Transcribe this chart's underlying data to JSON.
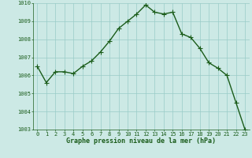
{
  "hours": [
    0,
    1,
    2,
    3,
    4,
    5,
    6,
    7,
    8,
    9,
    10,
    11,
    12,
    13,
    14,
    15,
    16,
    17,
    18,
    19,
    20,
    21,
    22,
    23
  ],
  "pressure": [
    1006.5,
    1005.6,
    1006.2,
    1006.2,
    1006.1,
    1006.5,
    1006.8,
    1007.3,
    1007.9,
    1008.6,
    1009.0,
    1009.4,
    1009.9,
    1009.5,
    1009.4,
    1009.5,
    1008.3,
    1008.1,
    1007.5,
    1006.7,
    1006.4,
    1006.0,
    1004.5,
    1003.0
  ],
  "line_color": "#1a5c1a",
  "marker": "+",
  "marker_size": 4,
  "bg_color": "#cce9e5",
  "grid_color": "#99ccc8",
  "xlabel": "Graphe pression niveau de la mer (hPa)",
  "xlabel_color": "#1a5c1a",
  "tick_color": "#1a5c1a",
  "ylim": [
    1003,
    1010
  ],
  "yticks": [
    1003,
    1004,
    1005,
    1006,
    1007,
    1008,
    1009,
    1010
  ],
  "xticks": [
    0,
    1,
    2,
    3,
    4,
    5,
    6,
    7,
    8,
    9,
    10,
    11,
    12,
    13,
    14,
    15,
    16,
    17,
    18,
    19,
    20,
    21,
    22,
    23
  ],
  "line_width": 1.0,
  "marker_linewidth": 0.8,
  "tick_fontsize": 5.0,
  "xlabel_fontsize": 6.0
}
